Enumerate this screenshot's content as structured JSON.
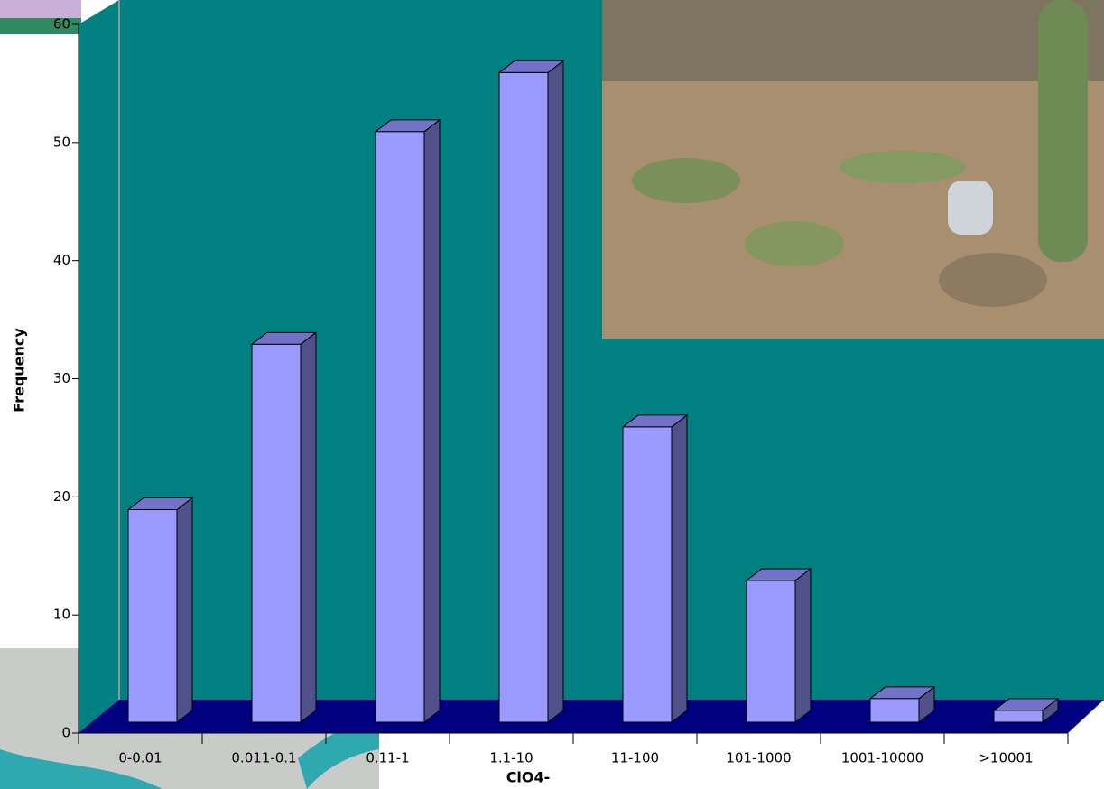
{
  "chart_data": {
    "type": "bar3d",
    "x_label": "ClO4-",
    "y_label": "Frequency",
    "categories": [
      "0-0.01",
      "0.011-0.1",
      "0.11-1",
      "1.1-10",
      "11-100",
      "101-1000",
      "1001-10000",
      ">10001"
    ],
    "values": [
      18,
      32,
      50,
      55,
      25,
      12,
      2,
      1
    ],
    "color": "#9999ff",
    "ylim": [
      0,
      60
    ],
    "yticks": [
      0,
      10,
      20,
      30,
      40,
      50,
      60
    ]
  }
}
